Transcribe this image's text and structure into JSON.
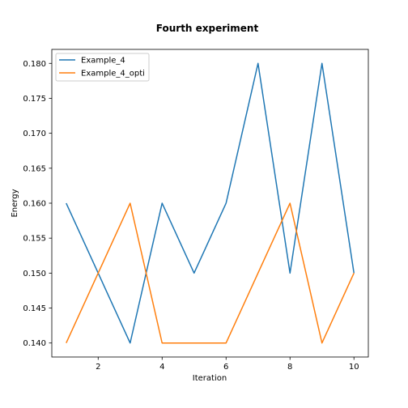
{
  "chart_data": {
    "type": "line",
    "title": "Fourth experiment",
    "xlabel": "Iteration",
    "ylabel": "Energy",
    "x": [
      1,
      2,
      3,
      4,
      5,
      6,
      7,
      8,
      9,
      10
    ],
    "xlim": [
      0.55,
      10.45
    ],
    "ylim": [
      0.138,
      0.182
    ],
    "xticks": [
      2,
      4,
      6,
      8,
      10
    ],
    "yticks": [
      0.14,
      0.145,
      0.15,
      0.155,
      0.16,
      0.165,
      0.17,
      0.175,
      0.18
    ],
    "xtick_labels": [
      "2",
      "4",
      "6",
      "8",
      "10"
    ],
    "ytick_labels": [
      "0.140",
      "0.145",
      "0.150",
      "0.155",
      "0.160",
      "0.165",
      "0.170",
      "0.175",
      "0.180"
    ],
    "grid": false,
    "legend_position": "top-left",
    "series": [
      {
        "name": "Example_4",
        "color": "#1f77b4",
        "values": [
          0.16,
          0.15,
          0.14,
          0.16,
          0.15,
          0.16,
          0.18,
          0.15,
          0.18,
          0.15
        ]
      },
      {
        "name": "Example_4_opti",
        "color": "#ff7f0e",
        "values": [
          0.14,
          0.15,
          0.16,
          0.14,
          0.14,
          0.14,
          0.15,
          0.16,
          0.14,
          0.15
        ]
      }
    ]
  }
}
